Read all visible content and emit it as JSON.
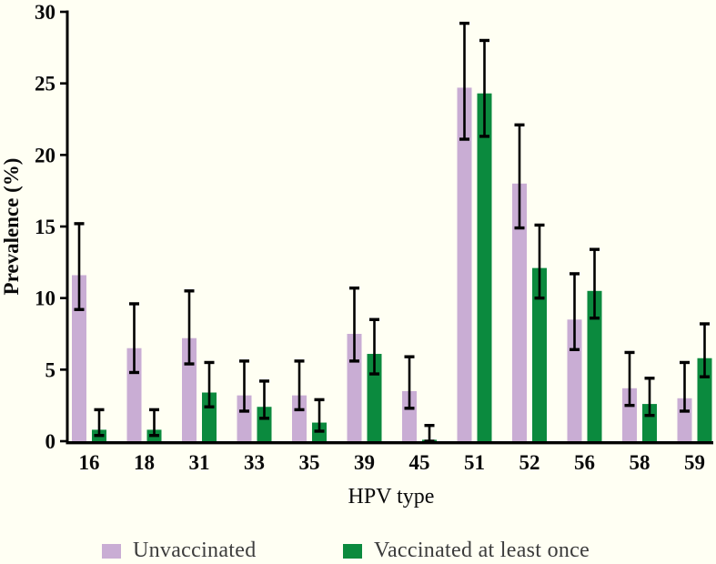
{
  "figure": {
    "background_color": "#fffff3",
    "axis_color": "#000000"
  },
  "chart_data": {
    "type": "bar",
    "title": "",
    "xlabel": "HPV type",
    "ylabel": "Prevalence (%)",
    "ylim": [
      0,
      30
    ],
    "yticks": [
      0,
      5,
      10,
      15,
      20,
      25,
      30
    ],
    "grid": false,
    "error_bars": true,
    "legend_position": "bottom",
    "categories": [
      "16",
      "18",
      "31",
      "33",
      "35",
      "39",
      "45",
      "51",
      "52",
      "56",
      "58",
      "59"
    ],
    "series": [
      {
        "name": "Unvaccinated",
        "color": "#c9add4",
        "values": [
          11.6,
          6.5,
          7.2,
          3.2,
          3.2,
          7.5,
          3.5,
          24.7,
          18.0,
          8.5,
          3.7,
          3.0
        ],
        "err_low": [
          9.2,
          4.8,
          5.4,
          2.1,
          2.2,
          5.6,
          2.3,
          21.1,
          14.9,
          6.4,
          2.5,
          2.1
        ],
        "err_high": [
          15.2,
          9.6,
          10.5,
          5.6,
          5.6,
          10.7,
          5.9,
          29.2,
          22.1,
          11.7,
          6.2,
          5.5
        ]
      },
      {
        "name": "Vaccinated at least once",
        "color": "#0b8a3e",
        "values": [
          0.8,
          0.8,
          3.4,
          2.4,
          1.3,
          6.1,
          0.1,
          24.3,
          12.1,
          10.5,
          2.6,
          5.8
        ],
        "err_low": [
          0.4,
          0.4,
          2.4,
          1.6,
          0.7,
          4.7,
          0.0,
          21.3,
          10.0,
          8.6,
          1.8,
          4.5
        ],
        "err_high": [
          2.2,
          2.2,
          5.5,
          4.2,
          2.9,
          8.5,
          1.1,
          28.0,
          15.1,
          13.4,
          4.4,
          8.2
        ]
      }
    ]
  }
}
